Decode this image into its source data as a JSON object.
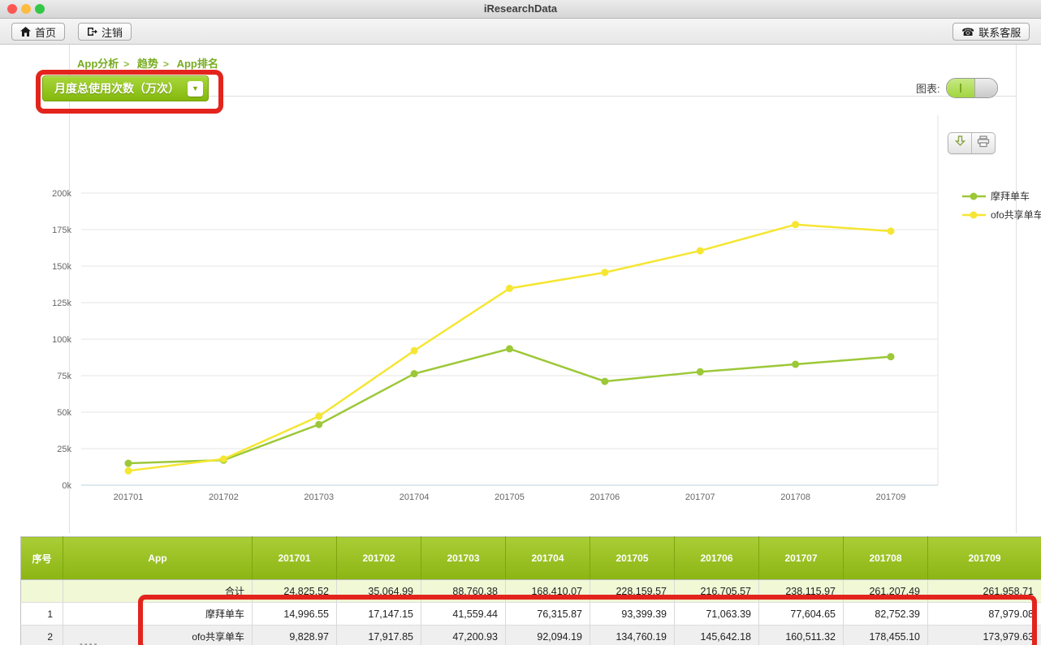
{
  "window": {
    "title": "iResearchData"
  },
  "toolbar": {
    "home_label": "首页",
    "logout_label": "注销",
    "contact_label": "联系客服",
    "contact_icon_glyph": "☎"
  },
  "breadcrumb": {
    "items": [
      "App分析",
      "趋势",
      "App排名"
    ],
    "separator": ">"
  },
  "metric_dropdown": {
    "selected": "月度总使用次数（万次）",
    "arrow_glyph": "▼"
  },
  "chart_toggle": {
    "label": "图表:",
    "state": "on"
  },
  "chart_data": {
    "type": "line",
    "title": "",
    "xlabel": "",
    "ylabel": "",
    "categories": [
      "201701",
      "201702",
      "201703",
      "201704",
      "201705",
      "201706",
      "201707",
      "201708",
      "201709"
    ],
    "series": [
      {
        "name": "摩拜单车",
        "color": "#9cc838",
        "values": [
          14996.55,
          17147.15,
          41559.44,
          76315.87,
          93399.39,
          71063.39,
          77604.65,
          82752.39,
          87979.08
        ]
      },
      {
        "name": "ofo共享单车",
        "color": "#f5e633",
        "values": [
          9828.97,
          17917.85,
          47200.93,
          92094.19,
          134760.19,
          145642.18,
          160511.32,
          178455.1,
          173979.63
        ]
      }
    ],
    "ylim": [
      0,
      200000
    ],
    "ytick_step": 25000,
    "ytick_labels": [
      "0k",
      "25k",
      "50k",
      "75k",
      "100k",
      "125k",
      "150k",
      "175k",
      "200k"
    ],
    "grid": true,
    "legend_position": "right"
  },
  "table": {
    "headers": [
      "序号",
      "App",
      "201701",
      "201702",
      "201703",
      "201704",
      "201705",
      "201706",
      "201707",
      "201708",
      "201709"
    ],
    "total_row": {
      "index": "",
      "app": "合计",
      "values": [
        "24,825.52",
        "35,064.99",
        "88,760.38",
        "168,410.07",
        "228,159.57",
        "216,705.57",
        "238,115.97",
        "261,207.49",
        "261,958.71"
      ]
    },
    "rows": [
      {
        "index": "1",
        "app": "摩拜单车",
        "values": [
          "14,996.55",
          "17,147.15",
          "41,559.44",
          "76,315.87",
          "93,399.39",
          "71,063.39",
          "77,604.65",
          "82,752.39",
          "87,979.08"
        ]
      },
      {
        "index": "2",
        "app": "ofo共享单车",
        "values": [
          "9,828.97",
          "17,917.85",
          "47,200.93",
          "92,094.19",
          "134,760.19",
          "145,642.18",
          "160,511.32",
          "178,455.10",
          "173,979.63"
        ]
      }
    ]
  },
  "colors": {
    "accent_green": "#8cb513",
    "breadcrumb_green": "#76ab1f",
    "annotation_red": "#e3241d",
    "traffic_red": "#fc5753",
    "traffic_yellow": "#fdbc40",
    "traffic_green": "#33c748",
    "grid_line": "#e6e6e6",
    "axis_line": "#bccfda"
  }
}
